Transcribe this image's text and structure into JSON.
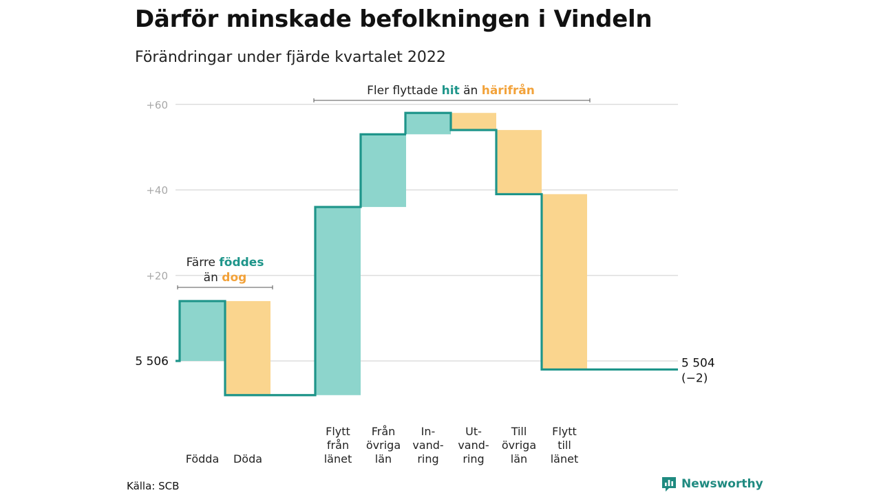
{
  "title": "Därför minskade befolkningen i Vindeln",
  "subtitle": "Förändringar under fjärde kvartalet 2022",
  "source": "Källa: SCB",
  "brand": "Newsworthy",
  "colors": {
    "in": "#8dd5cc",
    "out": "#fad58e",
    "line": "#1e958a",
    "grid": "#dddddd",
    "accent_in": "#1e958a",
    "accent_out": "#f2a23a"
  },
  "chart_data": {
    "type": "waterfall",
    "baseline": 5506,
    "end": 5504,
    "start_label": "5 506",
    "end_label": "5 504",
    "end_change_label": "(−2)",
    "ylim": [
      -8,
      64
    ],
    "y_ticks": [
      {
        "value": 20,
        "label": "+20"
      },
      {
        "value": 40,
        "label": "+40"
      },
      {
        "value": 60,
        "label": "+60"
      }
    ],
    "steps": [
      {
        "category": [
          "Födda"
        ],
        "value": 14,
        "kind": "in"
      },
      {
        "category": [
          "Döda"
        ],
        "value": -22,
        "kind": "out"
      },
      {
        "category": [
          "Flytt",
          "från",
          "länet"
        ],
        "value": 44,
        "kind": "in"
      },
      {
        "category": [
          "Från",
          "övriga",
          "län"
        ],
        "value": 17,
        "kind": "in"
      },
      {
        "category": [
          "In-",
          "vand-",
          "ring"
        ],
        "value": 5,
        "kind": "in"
      },
      {
        "category": [
          "Ut-",
          "vand-",
          "ring"
        ],
        "value": -4,
        "kind": "out"
      },
      {
        "category": [
          "Till",
          "övriga",
          "län"
        ],
        "value": -15,
        "kind": "out"
      },
      {
        "category": [
          "Flytt",
          "till",
          "länet"
        ],
        "value": -41,
        "kind": "out"
      }
    ],
    "annotations": {
      "births": {
        "parts": [
          "Färre ",
          "föddes",
          "än ",
          "dog"
        ]
      },
      "migration": {
        "parts": [
          "Fler flyttade ",
          "hit",
          " än ",
          "härifrån"
        ]
      }
    }
  }
}
